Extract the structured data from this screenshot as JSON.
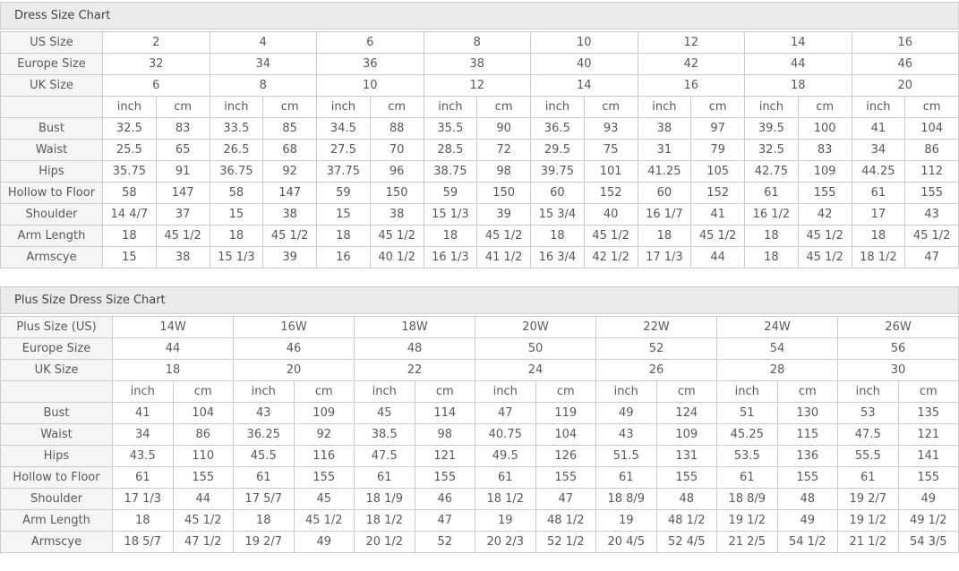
{
  "colors": {
    "border": "#cccccc",
    "title_bar_bg": "#ebebeb",
    "label_cell_bg": "#f5f5f5",
    "title_text": "#444444",
    "cell_text": "#5a5a5a"
  },
  "tables": [
    {
      "title": "Dress Size Chart",
      "size_rows": [
        {
          "label": "US Size",
          "values": [
            "2",
            "4",
            "6",
            "8",
            "10",
            "12",
            "14",
            "16"
          ]
        },
        {
          "label": "Europe Size",
          "values": [
            "32",
            "34",
            "36",
            "38",
            "40",
            "42",
            "44",
            "46"
          ]
        },
        {
          "label": "UK Size",
          "values": [
            "6",
            "8",
            "10",
            "12",
            "14",
            "16",
            "18",
            "20"
          ]
        }
      ],
      "unit_row": {
        "label": "",
        "units": [
          "inch",
          "cm"
        ]
      },
      "measurement_rows": [
        {
          "label": "Bust",
          "values": [
            "32.5",
            "83",
            "33.5",
            "85",
            "34.5",
            "88",
            "35.5",
            "90",
            "36.5",
            "93",
            "38",
            "97",
            "39.5",
            "100",
            "41",
            "104"
          ]
        },
        {
          "label": "Waist",
          "values": [
            "25.5",
            "65",
            "26.5",
            "68",
            "27.5",
            "70",
            "28.5",
            "72",
            "29.5",
            "75",
            "31",
            "79",
            "32.5",
            "83",
            "34",
            "86"
          ]
        },
        {
          "label": "Hips",
          "values": [
            "35.75",
            "91",
            "36.75",
            "92",
            "37.75",
            "96",
            "38.75",
            "98",
            "39.75",
            "101",
            "41.25",
            "105",
            "42.75",
            "109",
            "44.25",
            "112"
          ]
        },
        {
          "label": "Hollow to Floor",
          "values": [
            "58",
            "147",
            "58",
            "147",
            "59",
            "150",
            "59",
            "150",
            "60",
            "152",
            "60",
            "152",
            "61",
            "155",
            "61",
            "155"
          ]
        },
        {
          "label": "Shoulder",
          "values": [
            "14 4/7",
            "37",
            "15",
            "38",
            "15",
            "38",
            "15 1/3",
            "39",
            "15 3/4",
            "40",
            "16 1/7",
            "41",
            "16 1/2",
            "42",
            "17",
            "43"
          ]
        },
        {
          "label": "Arm Length",
          "values": [
            "18",
            "45 1/2",
            "18",
            "45 1/2",
            "18",
            "45 1/2",
            "18",
            "45 1/2",
            "18",
            "45 1/2",
            "18",
            "45 1/2",
            "18",
            "45 1/2",
            "18",
            "45 1/2"
          ]
        },
        {
          "label": "Armscye",
          "values": [
            "15",
            "38",
            "15 1/3",
            "39",
            "16",
            "40 1/2",
            "16 1/3",
            "41 1/2",
            "16 3/4",
            "42 1/2",
            "17 1/3",
            "44",
            "18",
            "45 1/2",
            "18 1/2",
            "47"
          ]
        }
      ]
    },
    {
      "title": "Plus Size Dress Size Chart",
      "size_rows": [
        {
          "label": "Plus Size (US)",
          "values": [
            "14W",
            "16W",
            "18W",
            "20W",
            "22W",
            "24W",
            "26W"
          ]
        },
        {
          "label": "Europe Size",
          "values": [
            "44",
            "46",
            "48",
            "50",
            "52",
            "54",
            "56"
          ]
        },
        {
          "label": "UK Size",
          "values": [
            "18",
            "20",
            "22",
            "24",
            "26",
            "28",
            "30"
          ]
        }
      ],
      "unit_row": {
        "label": "",
        "units": [
          "inch",
          "cm"
        ]
      },
      "measurement_rows": [
        {
          "label": "Bust",
          "values": [
            "41",
            "104",
            "43",
            "109",
            "45",
            "114",
            "47",
            "119",
            "49",
            "124",
            "51",
            "130",
            "53",
            "135"
          ]
        },
        {
          "label": "Waist",
          "values": [
            "34",
            "86",
            "36.25",
            "92",
            "38.5",
            "98",
            "40.75",
            "104",
            "43",
            "109",
            "45.25",
            "115",
            "47.5",
            "121"
          ]
        },
        {
          "label": "Hips",
          "values": [
            "43.5",
            "110",
            "45.5",
            "116",
            "47.5",
            "121",
            "49.5",
            "126",
            "51.5",
            "131",
            "53.5",
            "136",
            "55.5",
            "141"
          ]
        },
        {
          "label": "Hollow to Floor",
          "values": [
            "61",
            "155",
            "61",
            "155",
            "61",
            "155",
            "61",
            "155",
            "61",
            "155",
            "61",
            "155",
            "61",
            "155"
          ]
        },
        {
          "label": "Shoulder",
          "values": [
            "17 1/3",
            "44",
            "17 5/7",
            "45",
            "18 1/9",
            "46",
            "18 1/2",
            "47",
            "18 8/9",
            "48",
            "18 8/9",
            "48",
            "19 2/7",
            "49"
          ]
        },
        {
          "label": "Arm Length",
          "values": [
            "18",
            "45 1/2",
            "18",
            "45 1/2",
            "18 1/2",
            "47",
            "19",
            "48 1/2",
            "19",
            "48 1/2",
            "19 1/2",
            "49",
            "19 1/2",
            "49 1/2"
          ]
        },
        {
          "label": "Armscye",
          "values": [
            "18 5/7",
            "47 1/2",
            "19 2/7",
            "49",
            "20 1/2",
            "52",
            "20 2/3",
            "52 1/2",
            "20 4/5",
            "52 4/5",
            "21 2/5",
            "54 1/2",
            "21 1/2",
            "54 3/5"
          ]
        }
      ]
    }
  ]
}
